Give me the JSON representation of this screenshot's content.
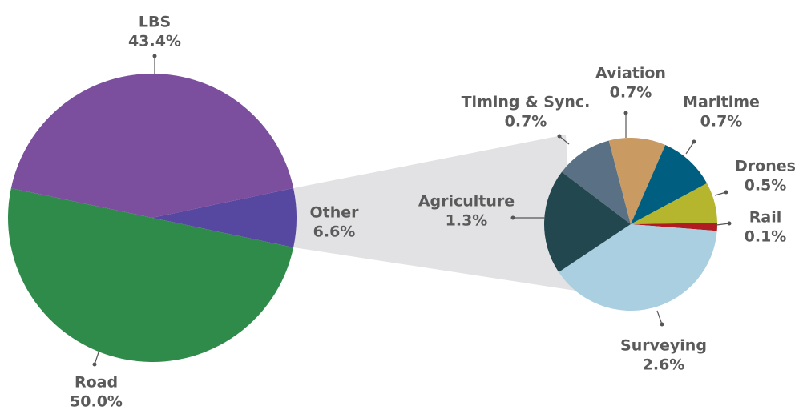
{
  "chart_data": [
    {
      "type": "pie",
      "categories": [
        "Other",
        "Road",
        "LBS"
      ],
      "values": [
        6.6,
        50.0,
        43.4
      ],
      "value_labels": [
        "6.6%",
        "50.0%",
        "43.4%"
      ],
      "colors": [
        "#5647a0",
        "#2e8b4a",
        "#7b4f9e"
      ]
    },
    {
      "type": "pie",
      "categories": [
        "Timing & Sync.",
        "Aviation",
        "Maritime",
        "Drones",
        "Rail",
        "Surveying",
        "Agriculture"
      ],
      "values": [
        0.7,
        0.7,
        0.7,
        0.5,
        0.1,
        2.6,
        1.3
      ],
      "value_labels": [
        "0.7%",
        "0.7%",
        "0.7%",
        "0.5%",
        "0.1%",
        "2.6%",
        "1.3%"
      ],
      "colors": [
        "#5a7185",
        "#c99a62",
        "#005f80",
        "#b5b62e",
        "#b01c22",
        "#a9cfe0",
        "#23474f"
      ]
    }
  ]
}
